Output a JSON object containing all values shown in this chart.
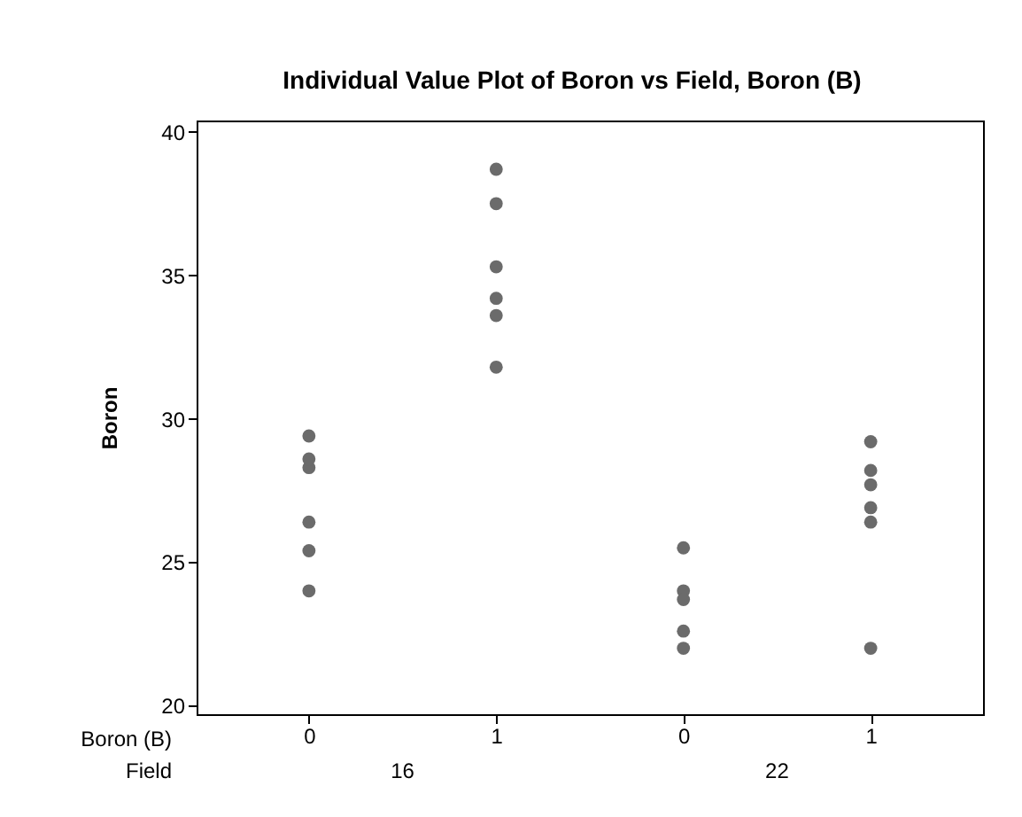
{
  "chart_data": {
    "type": "scatter",
    "title": "Individual Value Plot of Boron vs Field, Boron (B)",
    "ylabel": "Boron",
    "xlabel": "Boron (B)",
    "annotations": [
      "Field",
      "16",
      "22"
    ],
    "categories": [
      "0",
      "1",
      "0",
      "1"
    ],
    "ylim": [
      19.7,
      40.4
    ],
    "yticks": [
      20,
      25,
      30,
      35,
      40
    ],
    "grid": false,
    "marker": "circle",
    "series": [
      {
        "color": "#6b6b6b",
        "values": [
          28.3,
          38.7,
          25.5,
          29.2
        ]
      },
      {
        "color": "#6b6b6b",
        "values": [
          29.4,
          37.5,
          24.0,
          28.2
        ]
      },
      {
        "color": "#6b6b6b",
        "values": [
          28.6,
          35.3,
          23.7,
          27.7
        ]
      },
      {
        "color": "#6b6b6b",
        "values": [
          26.4,
          34.2,
          22.6,
          26.9
        ]
      },
      {
        "color": "#6b6b6b",
        "values": [
          25.4,
          33.6,
          22.0,
          26.4
        ]
      },
      {
        "color": "#6b6b6b",
        "values": [
          24.0,
          31.8,
          null,
          22.0
        ]
      }
    ]
  }
}
